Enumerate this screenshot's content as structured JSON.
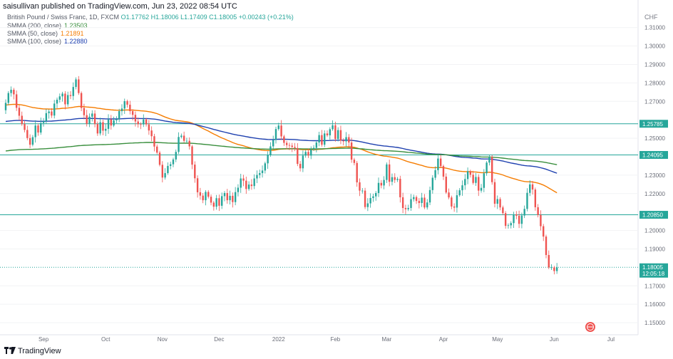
{
  "header": {
    "published_by": "saisullivan published on TradingView.com, Jun 23, 2022 08:54 UTC",
    "symbol": "British Pound / Swiss Franc, 1D, FXCM",
    "ohlc": "O1.17762 H1.18006 L1.17409 C1.18005 +0.00243 (+0.21%)",
    "currency": "CHF"
  },
  "indicators": [
    {
      "label": "SMMA (200, close)",
      "value": "1.23503",
      "color": "#388e3c"
    },
    {
      "label": "SMMA (50, close)",
      "value": "1.21891",
      "color": "#f57c00"
    },
    {
      "label": "SMMA (100, close)",
      "value": "1.22880",
      "color": "#1e40af"
    }
  ],
  "footer": {
    "brand": "TradingView"
  },
  "colors": {
    "up": "#26a69a",
    "down": "#ef5350",
    "hline": "#26a69a",
    "grid": "#f2f3f5"
  },
  "chart_data": {
    "type": "candlestick",
    "y_axis_ticks": [
      "1.31000",
      "1.30000",
      "1.29000",
      "1.28000",
      "1.27000",
      "1.25000",
      "1.23000",
      "1.22000",
      "1.20000",
      "1.19000",
      "1.17000",
      "1.16000",
      "1.15000"
    ],
    "ylim": [
      1.145,
      1.318
    ],
    "x_axis_ticks": [
      "Sep",
      "Oct",
      "Nov",
      "Dec",
      "2022",
      "Feb",
      "Mar",
      "Apr",
      "May",
      "Jun",
      "Jul"
    ],
    "x_tick_index": [
      14,
      37,
      58,
      79,
      101,
      122,
      141,
      162,
      182,
      203,
      224
    ],
    "horizontal_levels": [
      {
        "value": 1.25785,
        "label": "1.25785"
      },
      {
        "value": 1.24095,
        "label": "1.24095"
      },
      {
        "value": 1.2085,
        "label": "1.20850"
      }
    ],
    "last_price": {
      "value": 1.18005,
      "label": "1.18005",
      "countdown": "12:05:18"
    },
    "closes": [
      1.2692,
      1.2745,
      1.2763,
      1.2738,
      1.2665,
      1.2622,
      1.2577,
      1.2545,
      1.2501,
      1.2465,
      1.2506,
      1.2569,
      1.2531,
      1.2583,
      1.2592,
      1.2636,
      1.2645,
      1.2623,
      1.2688,
      1.2709,
      1.2727,
      1.2742,
      1.2684,
      1.2734,
      1.2729,
      1.2778,
      1.2819,
      1.2745,
      1.2664,
      1.2625,
      1.2579,
      1.2617,
      1.2634,
      1.2577,
      1.2526,
      1.2587,
      1.2541,
      1.2551,
      1.2602,
      1.2569,
      1.2597,
      1.2604,
      1.2647,
      1.2661,
      1.2701,
      1.2682,
      1.2647,
      1.2627,
      1.2591,
      1.2576,
      1.2575,
      1.2602,
      1.2575,
      1.2542,
      1.2511,
      1.2455,
      1.2422,
      1.2356,
      1.2287,
      1.2311,
      1.235,
      1.2359,
      1.2385,
      1.2426,
      1.2507,
      1.2514,
      1.2486,
      1.2486,
      1.2456,
      1.2357,
      1.2283,
      1.2207,
      1.2189,
      1.2164,
      1.2209,
      1.2183,
      1.2151,
      1.2129,
      1.2175,
      1.2134,
      1.2186,
      1.2203,
      1.2164,
      1.2188,
      1.2154,
      1.2208,
      1.2232,
      1.2282,
      1.227,
      1.2225,
      1.2249,
      1.2241,
      1.2282,
      1.2301,
      1.2311,
      1.2325,
      1.2364,
      1.2411,
      1.2456,
      1.2491,
      1.255,
      1.2569,
      1.251,
      1.2475,
      1.2463,
      1.246,
      1.2453,
      1.2447,
      1.2361,
      1.2337,
      1.2406,
      1.2426,
      1.2406,
      1.2439,
      1.2448,
      1.2477,
      1.2517,
      1.2465,
      1.2526,
      1.2516,
      1.2549,
      1.257,
      1.2496,
      1.2544,
      1.2487,
      1.2483,
      1.2506,
      1.2477,
      1.2384,
      1.2366,
      1.2261,
      1.2216,
      1.2216,
      1.2127,
      1.2147,
      1.2176,
      1.2185,
      1.2203,
      1.2258,
      1.2244,
      1.2274,
      1.2358,
      1.2264,
      1.2289,
      1.2274,
      1.228,
      1.218,
      1.2122,
      1.2115,
      1.2122,
      1.217,
      1.2181,
      1.216,
      1.2149,
      1.2178,
      1.2125,
      1.2152,
      1.2219,
      1.2286,
      1.2327,
      1.239,
      1.2349,
      1.2292,
      1.2206,
      1.2179,
      1.213,
      1.2124,
      1.2191,
      1.2218,
      1.2245,
      1.2279,
      1.2321,
      1.2302,
      1.2258,
      1.229,
      1.2216,
      1.2231,
      1.231,
      1.2368,
      1.2399,
      1.2262,
      1.2145,
      1.217,
      1.2125,
      1.2094,
      1.2025,
      1.2028,
      1.204,
      1.2087,
      1.208,
      1.2036,
      1.2081,
      1.2117,
      1.2204,
      1.225,
      1.2222,
      1.2126,
      1.2084,
      1.2023,
      1.1967,
      1.1867,
      1.18,
      1.18,
      1.178,
      1.18
    ]
  }
}
